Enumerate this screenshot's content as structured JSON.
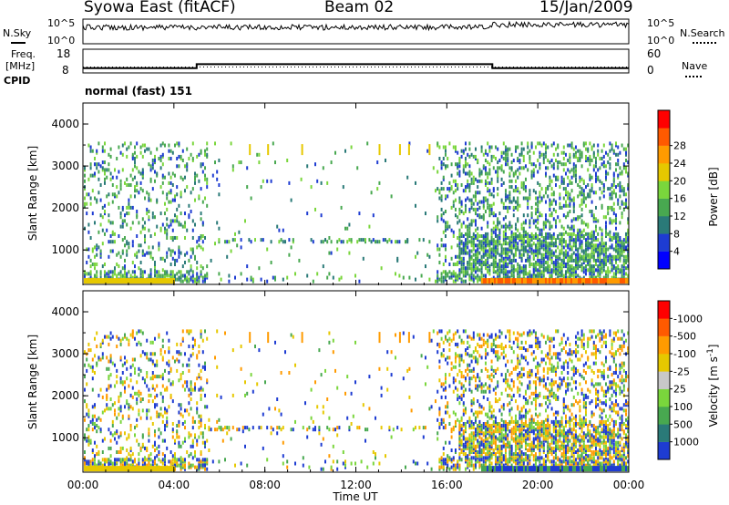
{
  "header": {
    "station": "Syowa East (fitACF)",
    "beam": "Beam 02",
    "date": "15/Jan/2009"
  },
  "side_labels": {
    "nsky": "N.Sky",
    "nsearch": "N.Search",
    "freq_line1": "Freq.",
    "freq_line2": "[MHz]",
    "nave": "Nave",
    "cpid": "CPID",
    "cpid_value": "normal (fast) 151"
  },
  "chart_data": [
    {
      "type": "line",
      "name": "noise-panel",
      "yticks_left": [
        "10^5",
        "10^0"
      ],
      "yticks_right": [
        "10^5",
        "10^0"
      ],
      "legend_left": "N.Sky",
      "legend_right": "N.Search"
    },
    {
      "type": "line",
      "name": "frequency-panel",
      "yticks_left": [
        "18",
        "8"
      ],
      "yticks_right": [
        "60",
        "0"
      ],
      "series": [
        {
          "name": "Freq.",
          "x": [
            0,
            5,
            5,
            18,
            18,
            24
          ],
          "y": [
            10.0,
            10.0,
            11.7,
            11.7,
            10.0,
            10.0
          ]
        },
        {
          "name": "Nave",
          "x": [
            0,
            24
          ],
          "y": [
            15,
            15
          ]
        }
      ]
    },
    {
      "type": "heatmap",
      "name": "power-panel",
      "ylabel": "Slant Range [km]",
      "yticks": [
        "1000",
        "2000",
        "3000",
        "4000"
      ],
      "ylim": [
        180,
        4500
      ],
      "xlim": [
        0,
        24
      ],
      "colorbar": {
        "label": "Power [dB]",
        "ticks": [
          "4",
          "8",
          "12",
          "16",
          "20",
          "24",
          "28"
        ],
        "colors": [
          "#0000ff",
          "#1e3cd2",
          "#2a7a78",
          "#48a850",
          "#7ad63c",
          "#e6c800",
          "#ff9b00",
          "#ff5a00",
          "#ff0000"
        ]
      }
    },
    {
      "type": "heatmap",
      "name": "velocity-panel",
      "ylabel": "Slant Range [km]",
      "yticks": [
        "1000",
        "2000",
        "3000",
        "4000"
      ],
      "ylim": [
        180,
        4500
      ],
      "xlim": [
        0,
        24
      ],
      "xlabel": "Time UT",
      "xticks": [
        "00:00",
        "04:00",
        "08:00",
        "12:00",
        "16:00",
        "20:00",
        "00:00"
      ],
      "colorbar": {
        "label": "Velocity",
        "label_unit": "[m s",
        "label_exp": "-1",
        "label_close": "]",
        "ticks": [
          "1000",
          "500",
          "100",
          "25",
          "-25",
          "-100",
          "-500",
          "-1000"
        ],
        "colors": [
          "#1e3cd2",
          "#2a7a78",
          "#48a850",
          "#7ad63c",
          "#c8c8c8",
          "#e6c800",
          "#ff9b00",
          "#ff5a00",
          "#ff0000"
        ]
      }
    }
  ]
}
